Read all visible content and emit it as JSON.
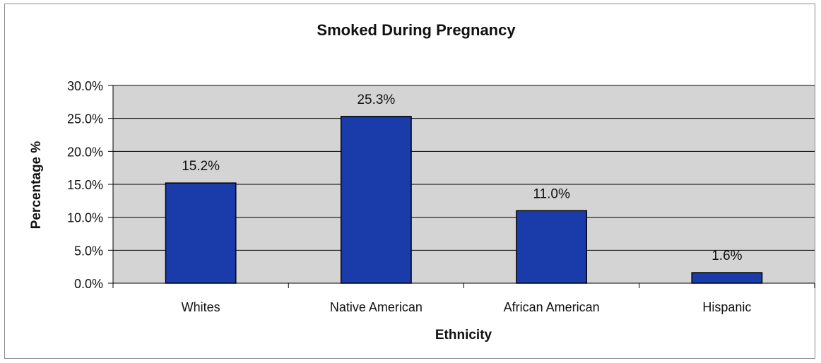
{
  "chart_data": {
    "type": "bar",
    "title": "Smoked During Pregnancy",
    "xlabel": "Ethnicity",
    "ylabel": "Percentage %",
    "categories": [
      "Whites",
      "Native American",
      "African American",
      "Hispanic"
    ],
    "values": [
      15.2,
      25.3,
      11.0,
      1.6
    ],
    "data_labels": [
      "15.2%",
      "25.3%",
      "11.0%",
      "1.6%"
    ],
    "ylim": [
      0,
      30
    ],
    "yticks": [
      0,
      5,
      10,
      15,
      20,
      25,
      30
    ],
    "ytick_labels": [
      "0.0%",
      "5.0%",
      "10.0%",
      "15.0%",
      "20.0%",
      "25.0%",
      "30.0%"
    ],
    "grid": true,
    "legend": "none",
    "colors": {
      "bar_fill": "#1a3caa",
      "bar_stroke": "#000000",
      "plot_background": "#d4d4d4",
      "gridline": "#000000"
    }
  }
}
